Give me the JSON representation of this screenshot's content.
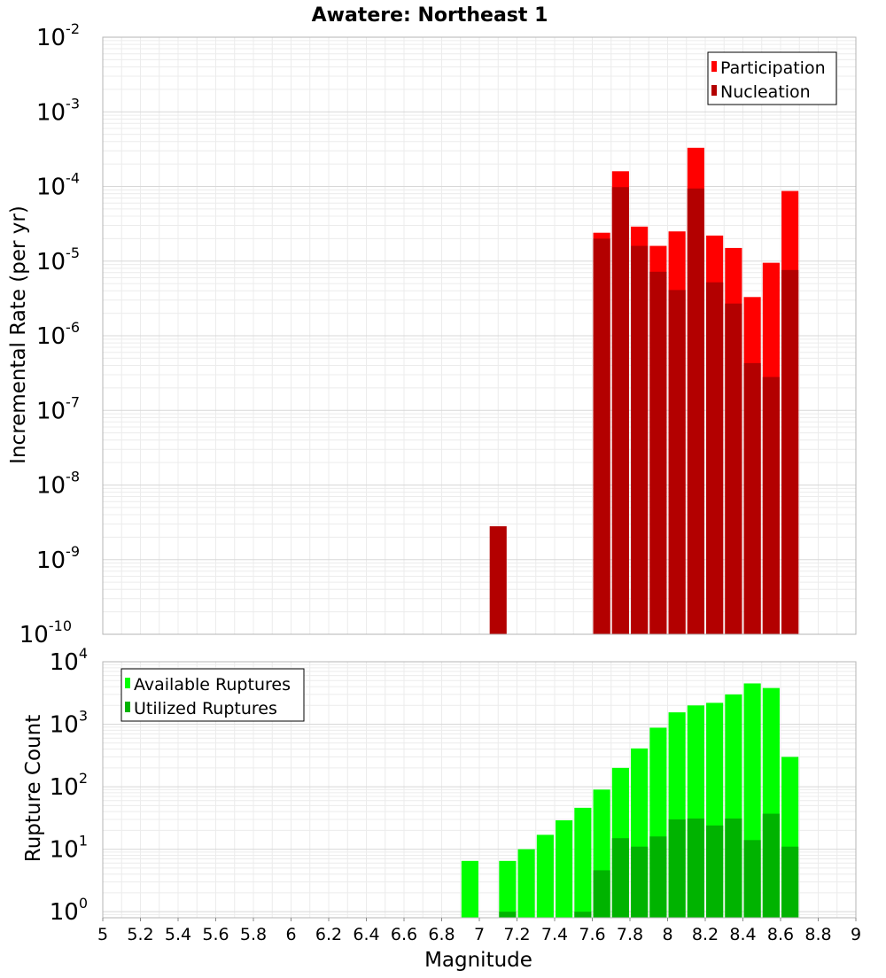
{
  "chart_data": [
    {
      "type": "bar",
      "title": "Awatere: Northeast 1",
      "xlabel": "",
      "ylabel": "Incremental Rate (per yr)",
      "y_scale": "log",
      "ylim": [
        1e-10,
        0.01
      ],
      "xlim": [
        5,
        9
      ],
      "yticks": [
        {
          "base": "10",
          "exp": "-10",
          "value": 1e-10
        },
        {
          "base": "10",
          "exp": "-9",
          "value": 1e-09
        },
        {
          "base": "10",
          "exp": "-8",
          "value": 1e-08
        },
        {
          "base": "10",
          "exp": "-7",
          "value": 1e-07
        },
        {
          "base": "10",
          "exp": "-6",
          "value": 1e-06
        },
        {
          "base": "10",
          "exp": "-5",
          "value": 1e-05
        },
        {
          "base": "10",
          "exp": "-4",
          "value": 0.0001
        },
        {
          "base": "10",
          "exp": "-3",
          "value": 0.001
        },
        {
          "base": "10",
          "exp": "-2",
          "value": 0.01
        }
      ],
      "grid": true,
      "legend_position": "top-right",
      "bar_width": 0.09,
      "x": [
        7.1,
        7.65,
        7.75,
        7.85,
        7.95,
        8.05,
        8.15,
        8.25,
        8.35,
        8.45,
        8.55,
        8.65
      ],
      "series": [
        {
          "name": "Participation",
          "color": "#ff0000",
          "values": [
            null,
            2.4e-05,
            0.00016,
            2.9e-05,
            1.6e-05,
            2.5e-05,
            0.00033,
            2.2e-05,
            1.5e-05,
            3.3e-06,
            9.5e-06,
            8.7e-05
          ]
        },
        {
          "name": "Nucleation",
          "color": "#b30000",
          "values": [
            2.8e-09,
            2e-05,
            9.8e-05,
            1.6e-05,
            7.2e-06,
            4.1e-06,
            9.4e-05,
            5.2e-06,
            2.7e-06,
            4.3e-07,
            2.8e-07,
            7.6e-06
          ]
        }
      ]
    },
    {
      "type": "bar",
      "title": "",
      "xlabel": "Magnitude",
      "ylabel": "Rupture Count",
      "y_scale": "log",
      "ylim": [
        0.8,
        10000
      ],
      "xlim": [
        5,
        9
      ],
      "yticks": [
        {
          "base": "10",
          "exp": "0",
          "value": 1
        },
        {
          "base": "10",
          "exp": "1",
          "value": 10
        },
        {
          "base": "10",
          "exp": "2",
          "value": 100
        },
        {
          "base": "10",
          "exp": "3",
          "value": 1000
        },
        {
          "base": "10",
          "exp": "4",
          "value": 10000
        }
      ],
      "xticks": [
        "5",
        "5.2",
        "5.4",
        "5.6",
        "5.8",
        "6",
        "6.2",
        "6.4",
        "6.6",
        "6.8",
        "7",
        "7.2",
        "7.4",
        "7.6",
        "7.8",
        "8",
        "8.2",
        "8.4",
        "8.6",
        "8.8",
        "9"
      ],
      "xtick_values": [
        5,
        5.2,
        5.4,
        5.6,
        5.8,
        6,
        6.2,
        6.4,
        6.6,
        6.8,
        7,
        7.2,
        7.4,
        7.6,
        7.8,
        8,
        8.2,
        8.4,
        8.6,
        8.8,
        9
      ],
      "grid": true,
      "legend_position": "top-left",
      "bar_width": 0.09,
      "x": [
        6.95,
        7.15,
        7.25,
        7.35,
        7.45,
        7.55,
        7.65,
        7.75,
        7.85,
        7.95,
        8.05,
        8.15,
        8.25,
        8.35,
        8.45,
        8.55,
        8.65
      ],
      "series": [
        {
          "name": "Available Ruptures",
          "color": "#00ff00",
          "values": [
            6.5,
            6.5,
            10,
            17,
            29,
            46,
            90,
            200,
            410,
            880,
            1550,
            2000,
            2200,
            3000,
            4500,
            3800,
            300
          ]
        },
        {
          "name": "Utilized Ruptures",
          "color": "#00b300",
          "values": [
            null,
            1,
            null,
            null,
            null,
            1,
            4.6,
            15,
            11,
            16,
            30,
            31,
            24,
            31,
            14,
            37,
            11
          ]
        }
      ]
    }
  ]
}
